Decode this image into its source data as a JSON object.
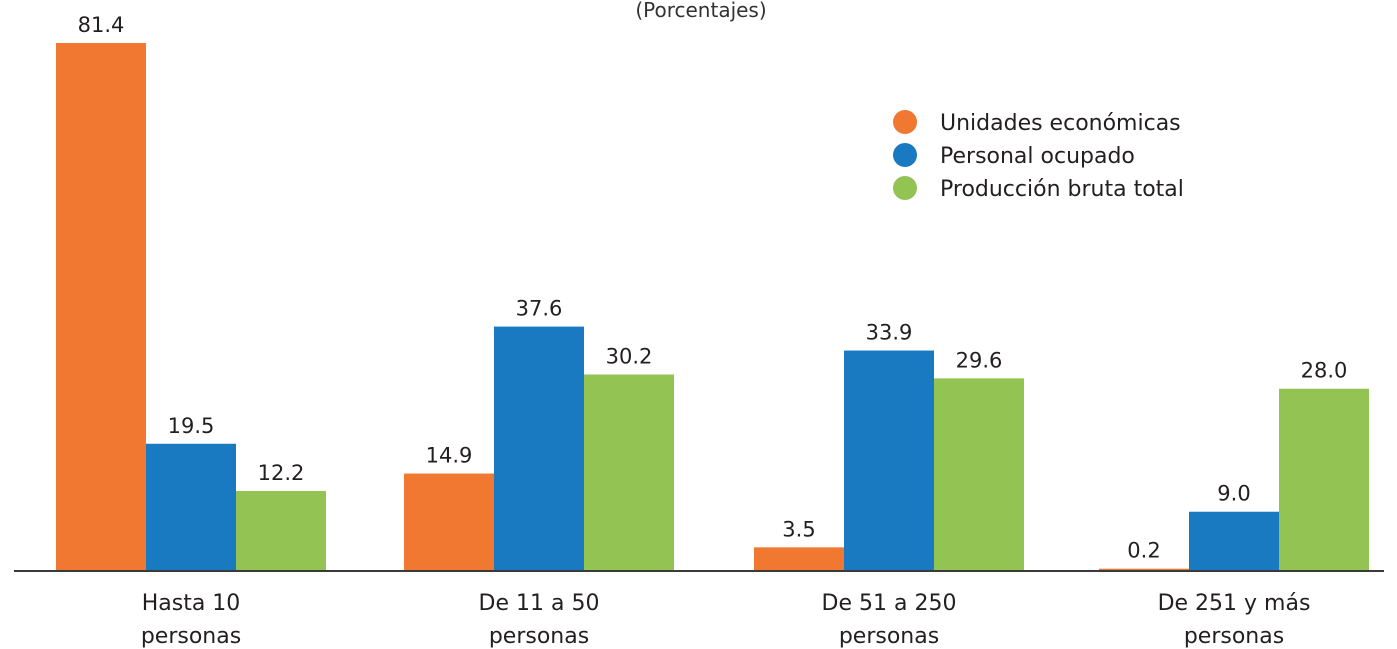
{
  "chart_data": {
    "type": "bar",
    "title": "",
    "subtitle": "(Porcentajes)",
    "xlabel": "",
    "ylabel": "",
    "ylim": [
      0,
      81.4
    ],
    "grid": false,
    "legend_position": "top-right",
    "categories": [
      [
        "Hasta 10",
        "personas"
      ],
      [
        "De 11 a 50",
        "personas"
      ],
      [
        "De 51 a 250",
        "personas"
      ],
      [
        "De 251 y más",
        "personas"
      ]
    ],
    "series": [
      {
        "name": "Unidades económicas",
        "color": "#f07830",
        "values": [
          81.4,
          14.9,
          3.5,
          0.2
        ],
        "labels": [
          "81.4",
          "14.9",
          "3.5",
          "0.2"
        ]
      },
      {
        "name": "Personal ocupado",
        "color": "#1a7ac1",
        "values": [
          19.5,
          37.6,
          33.9,
          9.0
        ],
        "labels": [
          "19.5",
          "37.6",
          "33.9",
          "9.0"
        ]
      },
      {
        "name": "Producción bruta total",
        "color": "#92c353",
        "values": [
          12.2,
          30.2,
          29.6,
          28.0
        ],
        "labels": [
          "12.2",
          "30.2",
          "29.6",
          "28.0"
        ]
      }
    ]
  }
}
